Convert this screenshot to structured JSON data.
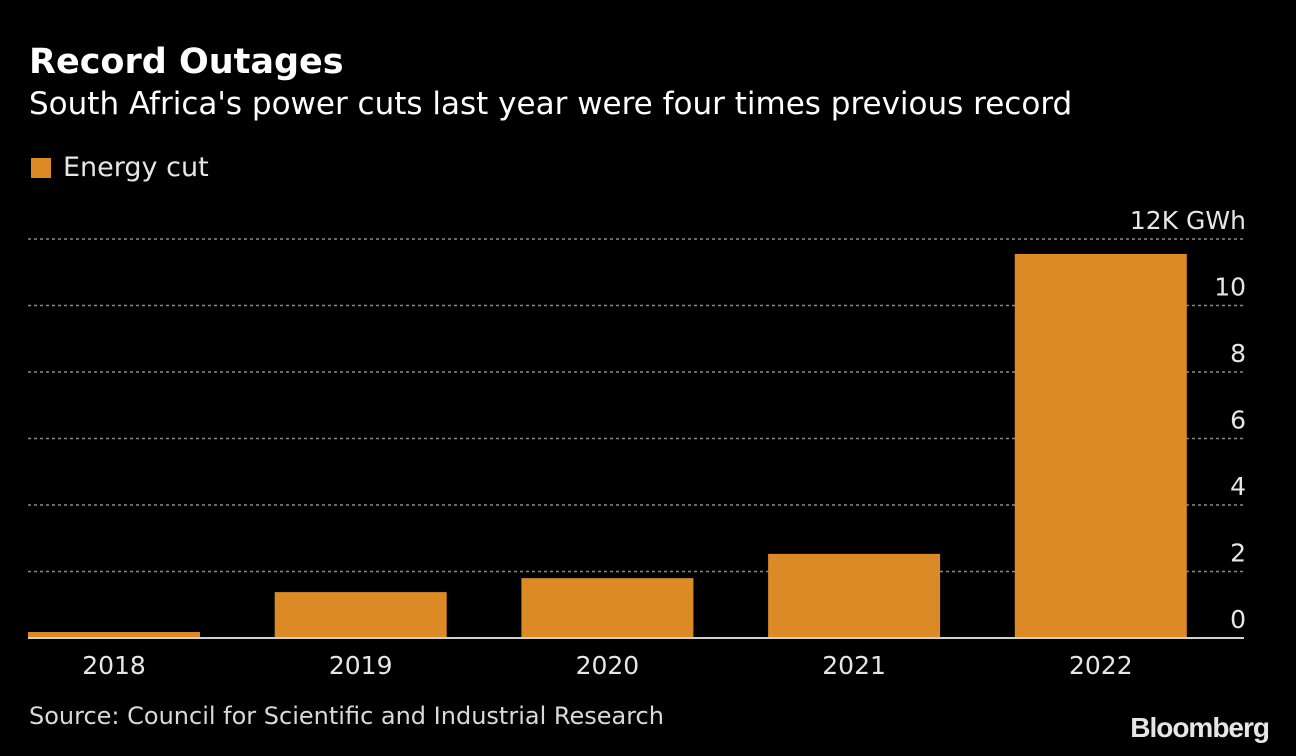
{
  "chart_data": {
    "type": "bar",
    "title": "Record Outages",
    "subtitle": "South Africa's power cuts last year were four times previous record",
    "categories": [
      "2018",
      "2019",
      "2020",
      "2021",
      "2022"
    ],
    "series": [
      {
        "name": "Energy cut",
        "values": [
          0.18,
          1.38,
          1.8,
          2.53,
          11.55
        ],
        "color": "#dc8a26"
      }
    ],
    "ylabel": "",
    "yunit": "12K GWh",
    "ylim": [
      0,
      12
    ],
    "yticks": [
      0,
      2,
      4,
      6,
      8,
      10,
      12
    ],
    "ytick_labels": [
      "0",
      "2",
      "4",
      "6",
      "8",
      "10",
      "12K GWh"
    ],
    "grid": true,
    "legend": "top-left",
    "axis_side": "right"
  },
  "source": "Source: Council for Scientific and Industrial Research",
  "logo": "Bloomberg",
  "colors": {
    "background": "#000000",
    "bar": "#dc8a26",
    "grid": "#8a8a8a"
  }
}
